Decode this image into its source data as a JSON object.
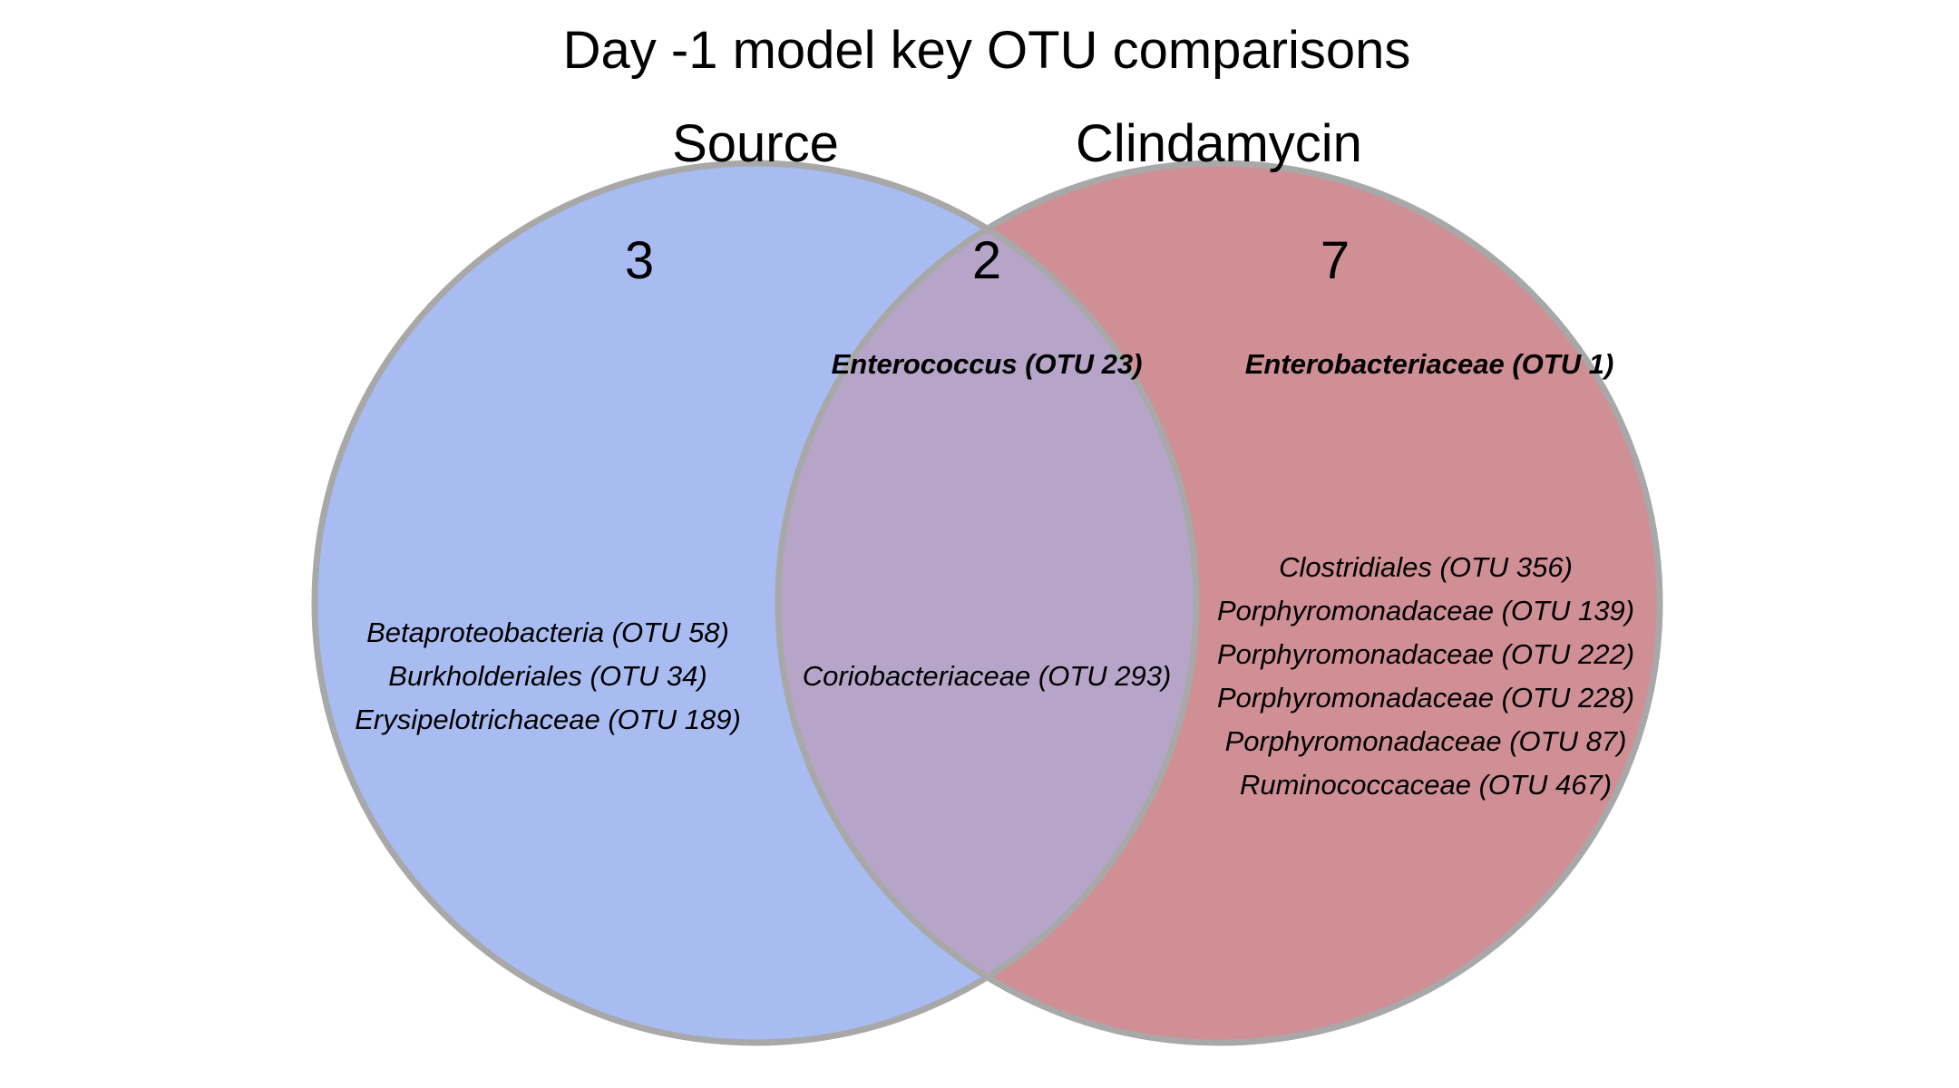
{
  "title": "Day -1 model key OTU comparisons",
  "sets": {
    "left": {
      "name": "Source",
      "color": "#a8bcf2"
    },
    "right": {
      "name": "Clindamycin",
      "color": "#d08f94"
    },
    "overlap_color": "#b6a5c8",
    "outline_color": "#a8a8a8"
  },
  "regions": {
    "left_only": {
      "count": "3",
      "bold_items": [],
      "items": [
        "Betaproteobacteria (OTU 58)",
        "Burkholderiales (OTU 34)",
        "Erysipelotrichaceae (OTU 189)"
      ]
    },
    "overlap": {
      "count": "2",
      "bold_items": [
        "Enterococcus (OTU 23)"
      ],
      "items": [
        "Coriobacteriaceae (OTU 293)"
      ]
    },
    "right_only": {
      "count": "7",
      "bold_items": [
        "Enterobacteriaceae (OTU 1)"
      ],
      "items": [
        "Clostridiales (OTU 356)",
        "Porphyromonadaceae (OTU 139)",
        "Porphyromonadaceae (OTU 222)",
        "Porphyromonadaceae (OTU 228)",
        "Porphyromonadaceae (OTU 87)",
        "Ruminococcaceae (OTU 467)"
      ]
    }
  }
}
